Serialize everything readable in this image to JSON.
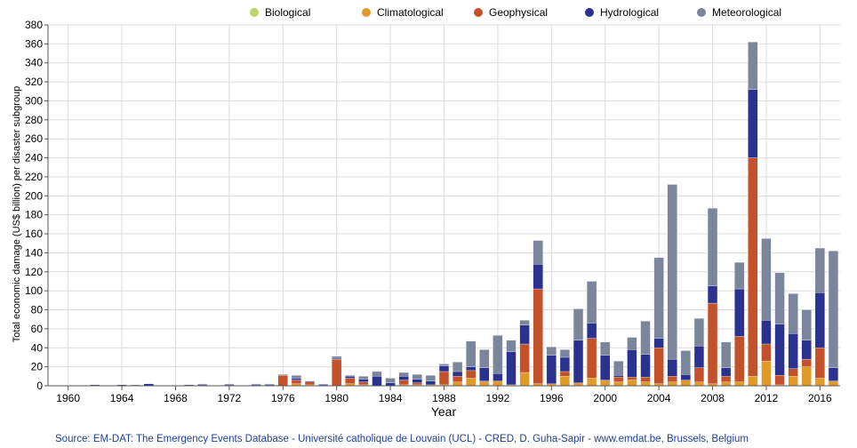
{
  "chart_data": {
    "type": "bar",
    "stacked": true,
    "xlabel": "Year",
    "ylabel": "Total economic damage (US$ billion) per  disaster subgroup",
    "ylim": [
      0,
      380
    ],
    "yticks": [
      0,
      20,
      40,
      60,
      80,
      100,
      120,
      140,
      160,
      180,
      200,
      220,
      240,
      260,
      280,
      300,
      320,
      340,
      360,
      380
    ],
    "xticks": [
      1960,
      1964,
      1968,
      1972,
      1976,
      1980,
      1984,
      1988,
      1992,
      1996,
      2000,
      2004,
      2008,
      2012,
      2016
    ],
    "xlim": [
      1959,
      2017
    ],
    "grid": true,
    "legend_position": "top",
    "colors": {
      "Biological": "#bcd36a",
      "Climatological": "#df9a28",
      "Geophysical": "#c3522b",
      "Hydrological": "#2b318f",
      "Meteorological": "#7b859c"
    },
    "categories": [
      1960,
      1961,
      1962,
      1963,
      1964,
      1965,
      1966,
      1967,
      1968,
      1969,
      1970,
      1971,
      1972,
      1973,
      1974,
      1975,
      1976,
      1977,
      1978,
      1979,
      1980,
      1981,
      1982,
      1983,
      1984,
      1985,
      1986,
      1987,
      1988,
      1989,
      1990,
      1991,
      1992,
      1993,
      1994,
      1995,
      1996,
      1997,
      1998,
      1999,
      2000,
      2001,
      2002,
      2003,
      2004,
      2005,
      2006,
      2007,
      2008,
      2009,
      2010,
      2011,
      2012,
      2013,
      2014,
      2015,
      2016,
      2017
    ],
    "series": [
      {
        "name": "Biological",
        "values": [
          0,
          0,
          0,
          0,
          0,
          0,
          0,
          0,
          0,
          0,
          0,
          0,
          0,
          0,
          0,
          0,
          0,
          0,
          0,
          0,
          0,
          0,
          0,
          0,
          0,
          0,
          0,
          0,
          0,
          0,
          0,
          0,
          0,
          0,
          0,
          0,
          0,
          0,
          0,
          0,
          0,
          0,
          0,
          0,
          0,
          0,
          0,
          0,
          0,
          0,
          0,
          0,
          0,
          0,
          0,
          0,
          0,
          0
        ]
      },
      {
        "name": "Climatological",
        "values": [
          0,
          0,
          0,
          0,
          0,
          0,
          0,
          0,
          0,
          0,
          0,
          0,
          0,
          0,
          0,
          0,
          0,
          2,
          1,
          0,
          0,
          2,
          1,
          0,
          0,
          1,
          1,
          1,
          1,
          4,
          8,
          4,
          5,
          1,
          14,
          2,
          2,
          10,
          3,
          8,
          6,
          4,
          6,
          4,
          2,
          4,
          6,
          4,
          2,
          4,
          4,
          10,
          26,
          1,
          10,
          20,
          8,
          5
        ]
      },
      {
        "name": "Geophysical",
        "values": [
          0,
          0,
          0,
          0,
          0,
          0,
          0,
          0,
          0,
          0,
          0,
          0,
          0,
          0,
          0,
          0,
          11,
          4,
          3,
          0,
          28,
          6,
          3,
          0,
          0,
          5,
          2,
          0,
          14,
          6,
          8,
          1,
          0,
          0,
          30,
          100,
          0,
          5,
          0,
          42,
          0,
          5,
          3,
          5,
          38,
          6,
          0,
          15,
          85,
          6,
          48,
          230,
          18,
          10,
          8,
          8,
          32,
          0
        ]
      },
      {
        "name": "Hydrological",
        "values": [
          0,
          0,
          1,
          0,
          1,
          0,
          2,
          0,
          0,
          1,
          1,
          0,
          1,
          0,
          1,
          1,
          0,
          2,
          1,
          1,
          1,
          2,
          3,
          10,
          3,
          4,
          4,
          4,
          6,
          5,
          4,
          14,
          8,
          35,
          20,
          26,
          30,
          15,
          45,
          16,
          26,
          2,
          29,
          24,
          10,
          18,
          6,
          23,
          18,
          9,
          50,
          72,
          25,
          54,
          37,
          20,
          58,
          14
        ]
      },
      {
        "name": "Meteorological",
        "values": [
          0,
          0,
          0,
          0,
          0,
          1,
          0,
          0,
          0,
          0,
          1,
          0,
          1,
          0,
          1,
          1,
          1,
          3,
          0,
          1,
          2,
          1,
          3,
          5,
          5,
          4,
          5,
          6,
          2,
          10,
          27,
          19,
          40,
          12,
          5,
          25,
          9,
          8,
          33,
          44,
          14,
          15,
          13,
          35,
          85,
          184,
          25,
          29,
          82,
          27,
          28,
          50,
          86,
          54,
          42,
          32,
          47,
          123
        ]
      }
    ],
    "source": "Source: EM-DAT: The Emergency Events Database - Université catholique de Louvain (UCL) - CRED, D. Guha-Sapir - www.emdat.be, Brussels, Belgium"
  }
}
